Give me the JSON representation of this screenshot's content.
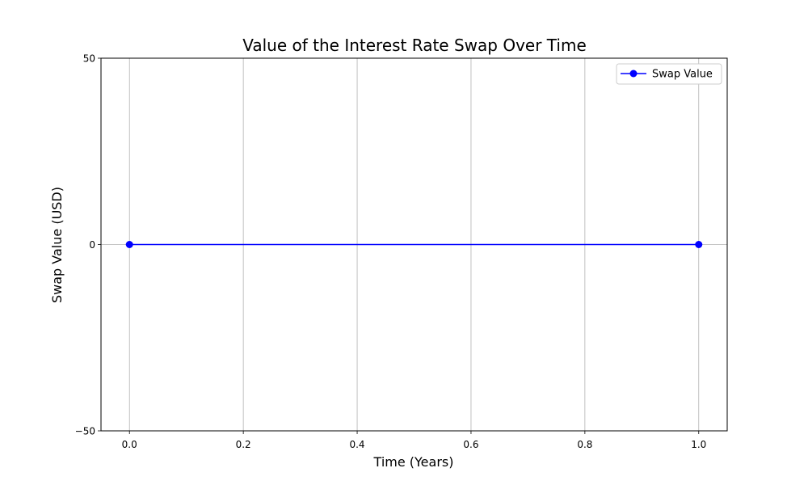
{
  "chart_data": {
    "type": "line",
    "title": "Value of the Interest Rate Swap Over Time",
    "xlabel": "Time (Years)",
    "ylabel": "Swap Value (USD)",
    "xlim": [
      -0.05,
      1.05
    ],
    "ylim": [
      -50,
      50
    ],
    "x_ticks": [
      0.0,
      0.2,
      0.4,
      0.6,
      0.8,
      1.0
    ],
    "x_tick_labels": [
      "0.0",
      "0.2",
      "0.4",
      "0.6",
      "0.8",
      "1.0"
    ],
    "y_ticks": [
      -50,
      0,
      50
    ],
    "y_tick_labels": [
      "−50",
      "0",
      "50"
    ],
    "grid": true,
    "legend_position": "top-right",
    "series": [
      {
        "name": "Swap Value",
        "color": "#0000ff",
        "marker": "circle",
        "x": [
          0.0,
          1.0
        ],
        "y": [
          0,
          0
        ]
      }
    ]
  }
}
